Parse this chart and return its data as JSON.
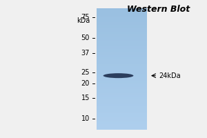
{
  "title": "Western Blot",
  "kda_label": "kDa",
  "marker_values": [
    75,
    50,
    37,
    25,
    20,
    15,
    10
  ],
  "band_kda": 23.5,
  "band_label": "←24kDa",
  "gel_color": "#a8c8e0",
  "band_color": "#1a2a4a",
  "background_color": "#f0f0f0",
  "title_fontsize": 9,
  "axis_fontsize": 7,
  "annotation_fontsize": 7,
  "y_min": 8,
  "y_max": 90,
  "fig_width": 3.0,
  "fig_height": 2.0
}
